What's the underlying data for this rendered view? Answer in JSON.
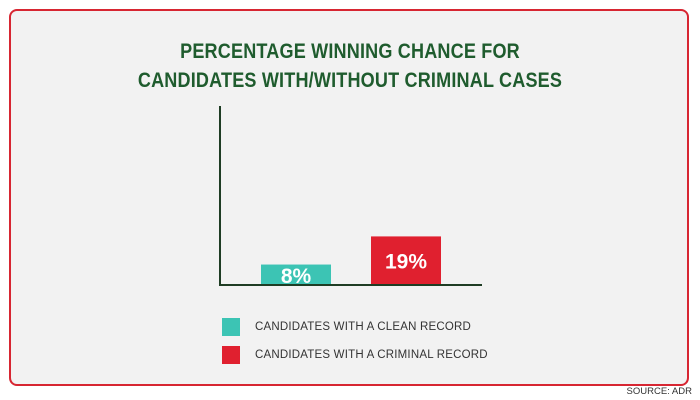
{
  "title_lines": [
    "PERCENTAGE WINNING CHANCE FOR",
    "CANDIDATES WITH/WITHOUT CRIMINAL CASES"
  ],
  "source": "SOURCE: ADR",
  "colors": {
    "clean": "#3cc4b4",
    "criminal": "#e0202f",
    "title": "#1f5c2e",
    "border": "#d72632",
    "background": "#f2f2f2"
  },
  "chart_data": {
    "type": "bar",
    "title": "PERCENTAGE WINNING CHANCE FOR CANDIDATES WITH/WITHOUT CRIMINAL CASES",
    "categories": [
      "CANDIDATES WITH A CLEAN RECORD",
      "CANDIDATES WITH A CRIMINAL RECORD"
    ],
    "values": [
      8,
      19
    ],
    "value_labels": [
      "8%",
      "19%"
    ],
    "units": "%",
    "ylim": [
      0,
      70
    ],
    "grid": false,
    "legend_position": "bottom",
    "colors": [
      "#3cc4b4",
      "#e0202f"
    ],
    "xlabel": "",
    "ylabel": ""
  },
  "legend": [
    {
      "label": "CANDIDATES WITH A CLEAN RECORD",
      "color": "#3cc4b4"
    },
    {
      "label": "CANDIDATES WITH A CRIMINAL RECORD",
      "color": "#e0202f"
    }
  ]
}
